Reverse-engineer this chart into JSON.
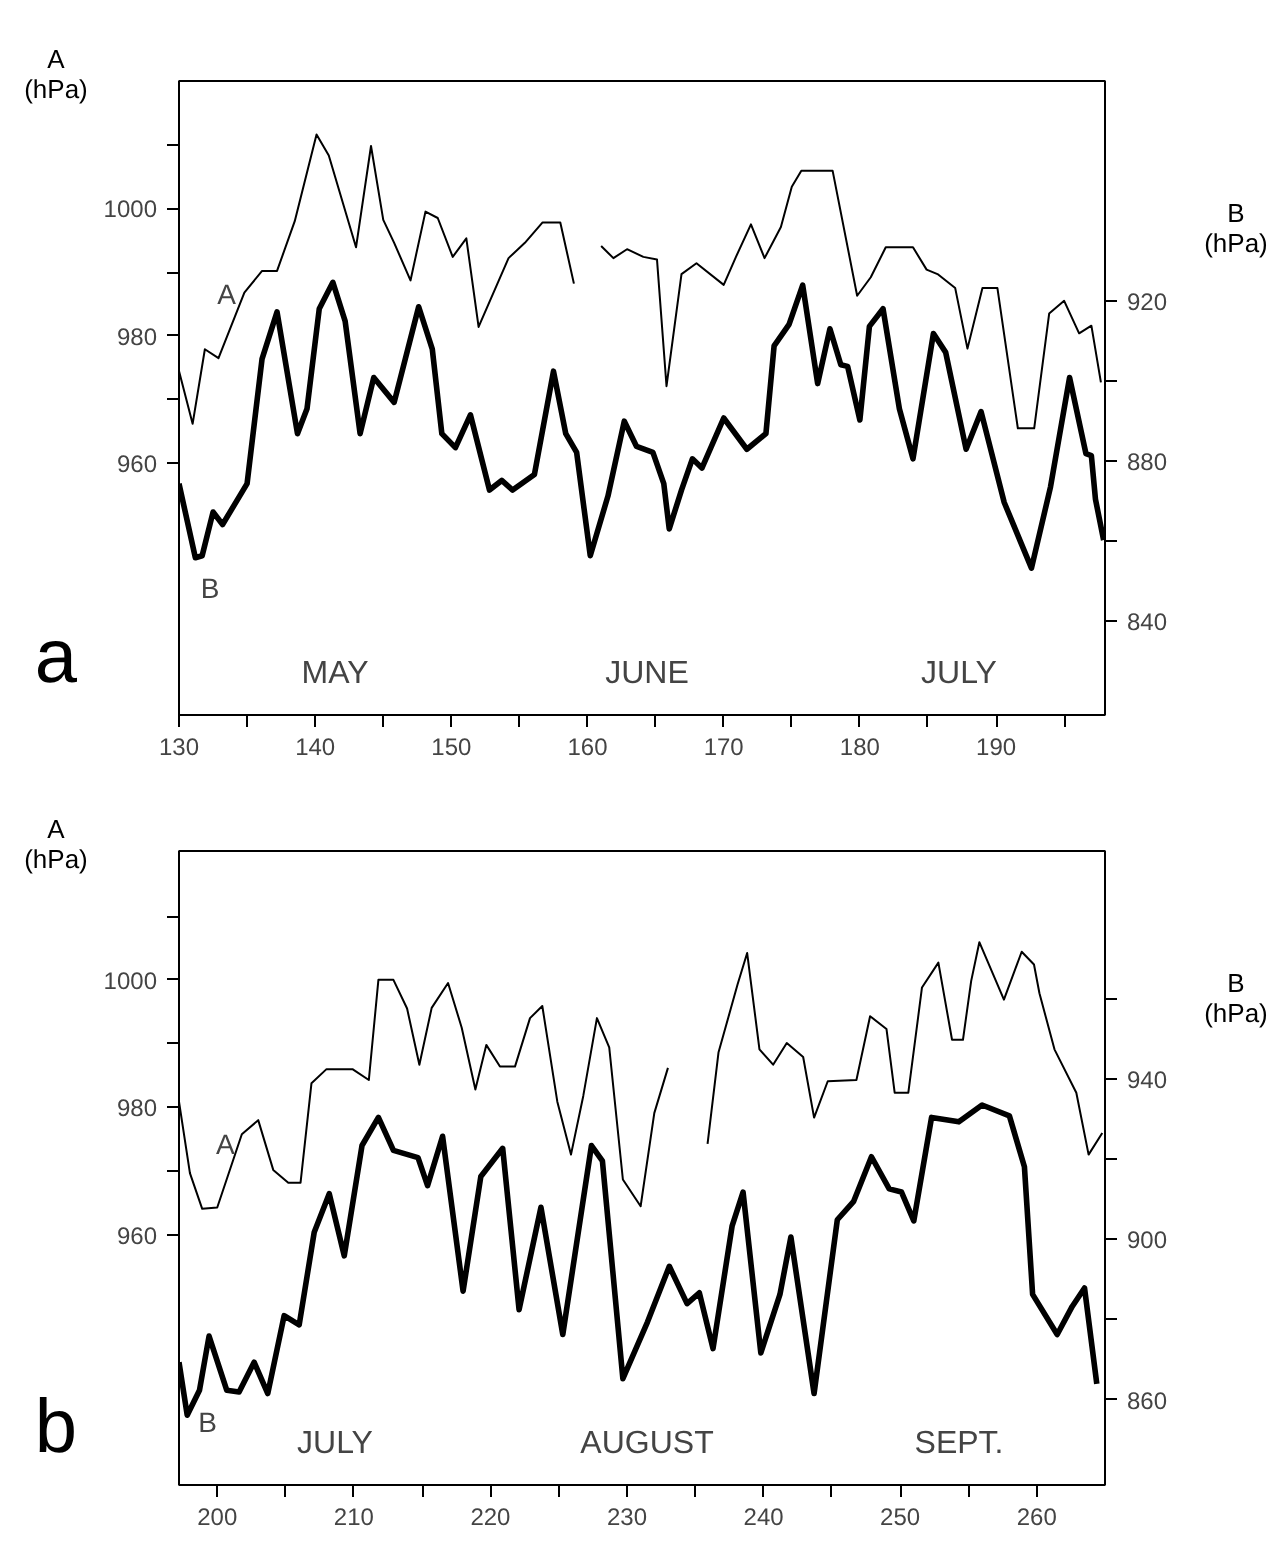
{
  "chart_data": [
    {
      "type": "line",
      "title": "a",
      "ylabel": "A\n(hPa)",
      "y2label": "B\n(hPa)",
      "xlim": [
        130,
        198
      ],
      "ylim": [
        920.5,
        1020
      ],
      "y2lim": [
        816.6,
        975
      ],
      "xticks": [
        130,
        {
          "value": 135,
          "label": null
        },
        140,
        {
          "value": 145,
          "label": null
        },
        150,
        {
          "value": 155,
          "label": null
        },
        160,
        {
          "value": 165,
          "label": null
        },
        170,
        {
          "value": 175,
          "label": null
        },
        180,
        {
          "value": 185,
          "label": null
        },
        190,
        {
          "value": 195,
          "label": null
        }
      ],
      "yticks": [
        960,
        {
          "value": 970,
          "label": null
        },
        980,
        {
          "value": 990,
          "label": null
        },
        1000,
        {
          "value": 1010,
          "label": null
        }
      ],
      "y2ticks": [
        840,
        {
          "value": 860,
          "label": null
        },
        880,
        {
          "value": 900,
          "label": null
        },
        920
      ],
      "grid": false,
      "marker": "none",
      "annotations": [
        "MAY",
        "JUNE",
        "JULY"
      ],
      "series": [
        {
          "name": "A",
          "color": "#000000",
          "x": [
            130,
            131.0,
            131.9,
            132.9,
            134.8,
            136.1,
            137.2,
            138.5,
            140.1,
            141.0,
            143.0,
            144.1,
            145.0,
            145.8,
            147.0,
            148.1,
            149.0,
            150.1,
            151.1,
            152.0,
            154.2,
            155.4,
            156.7,
            158.0,
            159.0,
            160,
            161.0,
            161.9,
            162.9,
            164.1,
            165.1,
            165.8,
            166.9,
            168.0,
            170.0,
            170.9,
            172.0,
            173.0,
            174.2,
            175.0,
            175.7,
            178.0,
            179.8,
            180.8,
            181.9,
            183.9,
            184.9,
            185.7,
            187.0,
            187.9,
            189.0,
            190.1,
            191.6,
            192.8,
            193.9,
            195.0,
            196.1,
            197.0,
            197.7
          ],
          "values": [
            974.5,
            966.2,
            977.9,
            976.5,
            986.8,
            990.2,
            990.2,
            998.0,
            1011.6,
            1008.3,
            993.9,
            1009.8,
            998.2,
            994.6,
            988.7,
            999.5,
            998.5,
            992.4,
            995.3,
            981.4,
            992.2,
            994.6,
            997.8,
            997.8,
            988.2,
            null,
            994.1,
            992.2,
            993.6,
            992.4,
            992.0,
            972.1,
            989.7,
            991.4,
            988.0,
            992.4,
            997.5,
            992.2,
            997.1,
            1003.4,
            1005.9,
            1005.9,
            986.3,
            989.2,
            993.9,
            993.9,
            990.4,
            989.7,
            987.5,
            978.0,
            987.5,
            987.5,
            965.5,
            965.5,
            983.5,
            985.5,
            980.4,
            981.6,
            972.7
          ]
        },
        {
          "name": "B",
          "color": "#000000",
          "axis": "y2",
          "x": [
            130,
            131.2,
            131.7,
            132.5,
            133.2,
            135.0,
            136.1,
            137.2,
            138.7,
            139.4,
            140.3,
            141.3,
            142.2,
            143.3,
            144.3,
            145.8,
            147.6,
            148.6,
            149.3,
            150.3,
            151.4,
            152.8,
            153.7,
            154.5,
            156.1,
            157.5,
            158.4,
            159.2,
            160.2,
            161.5,
            162.7,
            163.6,
            164.8,
            165.6,
            166.0,
            166.9,
            167.7,
            168.4,
            170.0,
            171.7,
            173.1,
            173.7,
            174.8,
            175.8,
            176.9,
            177.8,
            178.6,
            179.1,
            180.0,
            180.7,
            181.7,
            182.9,
            183.9,
            185.4,
            186.3,
            187.8,
            188.9,
            190.6,
            192.6,
            194.0,
            195.4,
            196.6,
            197.0,
            197.3,
            197.9
          ],
          "values": [
            874.4,
            855.9,
            856.4,
            867.3,
            864.2,
            874.4,
            905.6,
            917.3,
            886.9,
            893.1,
            918.1,
            924.7,
            915.0,
            886.9,
            900.9,
            894.7,
            918.6,
            908.0,
            886.9,
            883.4,
            891.6,
            872.8,
            875.2,
            872.8,
            876.7,
            902.5,
            886.9,
            882.2,
            856.4,
            871.3,
            890.0,
            883.7,
            882.2,
            874.4,
            863.1,
            872.8,
            880.6,
            878.3,
            890.8,
            883.0,
            886.9,
            908.8,
            914.2,
            924.0,
            899.4,
            913.1,
            904.1,
            903.7,
            890.3,
            913.7,
            918.1,
            893.1,
            880.6,
            911.9,
            907.2,
            883.0,
            892.4,
            869.7,
            853.3,
            873.6,
            900.9,
            881.9,
            881.4,
            870.5,
            860.3
          ]
        }
      ]
    },
    {
      "type": "line",
      "title": "b",
      "ylabel": "A\n(hPa)",
      "y2label": "B\n(hPa)",
      "xlim": [
        197.2,
        265
      ],
      "ylim": [
        920.8,
        1020.2
      ],
      "y2lim": [
        838.7,
        996.7
      ],
      "xticks": [
        200,
        {
          "value": 205,
          "label": null
        },
        210,
        {
          "value": 215,
          "label": null
        },
        220,
        {
          "value": 225,
          "label": null
        },
        230,
        {
          "value": 235,
          "label": null
        },
        240,
        {
          "value": 245,
          "label": null
        },
        250,
        {
          "value": 255,
          "label": null
        },
        260
      ],
      "yticks": [
        960,
        {
          "value": 970,
          "label": null
        },
        980,
        {
          "value": 990,
          "label": null
        },
        1000,
        {
          "value": 1010,
          "label": null
        }
      ],
      "y2ticks": [
        860,
        {
          "value": 880,
          "label": null
        },
        900,
        {
          "value": 920,
          "label": null
        },
        940,
        {
          "value": 960,
          "label": null
        }
      ],
      "grid": false,
      "marker": "none",
      "annotations": [
        "JULY",
        "AUGUST",
        "SEPT."
      ],
      "series": [
        {
          "name": "A",
          "color": "#000000",
          "x": [
            197.2,
            198.0,
            198.9,
            200.0,
            201.8,
            203.0,
            204.1,
            205.2,
            206.1,
            206.9,
            208.0,
            209.9,
            211.1,
            211.8,
            212.9,
            213.9,
            214.8,
            215.7,
            216.9,
            217.9,
            218.9,
            219.7,
            220.7,
            221.8,
            222.9,
            223.8,
            224.9,
            225.9,
            226.8,
            227.8,
            228.7,
            229.7,
            231.0,
            232.0,
            233.0,
            234.5,
            235.9,
            236.7,
            238.1,
            238.8,
            239.7,
            240.7,
            241.7,
            242.9,
            243.7,
            244.7,
            246.8,
            247.8,
            249.0,
            249.6,
            250.6,
            251.6,
            252.8,
            253.8,
            254.6,
            255.2,
            255.8,
            257.6,
            258.9,
            259.8,
            260.2,
            261.3,
            262.9,
            263.8,
            264.8
          ],
          "values": [
            980.9,
            969.7,
            964.1,
            964.3,
            975.8,
            978.0,
            970.2,
            968.2,
            968.2,
            983.8,
            986.0,
            986.0,
            984.3,
            1000,
            1000,
            995.5,
            986.7,
            995.6,
            999.5,
            992.5,
            982.8,
            989.8,
            986.4,
            986.4,
            994.0,
            995.9,
            980.9,
            972.6,
            981.8,
            994.0,
            989.4,
            968.7,
            964.5,
            979.1,
            986.2,
            null,
            974.3,
            988.6,
            999.3,
            1004.2,
            989.1,
            986.7,
            990.1,
            987.9,
            978.4,
            984.1,
            984.3,
            994.3,
            992.3,
            982.3,
            982.3,
            998.8,
            1002.7,
            990.6,
            990.6,
            999.8,
            1005.9,
            996.9,
            1004.4,
            1002.4,
            997.9,
            989.1,
            982.3,
            972.6,
            976.0
          ]
        },
        {
          "name": "B",
          "color": "#000000",
          "axis": "y2",
          "x": [
            197.2,
            197.8,
            198.7,
            199.4,
            200.7,
            201.6,
            202.7,
            203.7,
            204.9,
            206.0,
            207.1,
            208.2,
            209.3,
            210.6,
            211.8,
            212.9,
            214.7,
            215.4,
            216.5,
            218.0,
            219.3,
            220.9,
            222.1,
            223.7,
            225.3,
            227.4,
            228.2,
            229.7,
            231.5,
            233.1,
            234.4,
            235.3,
            236.3,
            237.7,
            238.5,
            239.8,
            241.2,
            242.0,
            243.7,
            245.4,
            246.6,
            247.9,
            249.2,
            250.1,
            251.0,
            252.3,
            254.3,
            256.0,
            258.0,
            259.1,
            259.7,
            261.5,
            262.6,
            263.5,
            264.4
          ],
          "values": [
            869.3,
            856.1,
            862.3,
            875.8,
            862.3,
            861.9,
            869.3,
            861.5,
            880.9,
            878.6,
            901.7,
            911.3,
            895.8,
            923.3,
            930.3,
            922.1,
            920.3,
            913.3,
            925.6,
            887.0,
            915.6,
            922.6,
            882.4,
            907.9,
            876.2,
            923.3,
            919.5,
            865.2,
            879.3,
            893.2,
            883.9,
            886.6,
            872.7,
            903.3,
            911.7,
            871.6,
            886.2,
            900.5,
            861.5,
            904.8,
            909.4,
            920.5,
            912.5,
            911.7,
            904.5,
            930.3,
            929.2,
            933.4,
            930.7,
            918.0,
            886.2,
            876.2,
            883.2,
            887.8,
            863.9
          ]
        }
      ]
    }
  ]
}
